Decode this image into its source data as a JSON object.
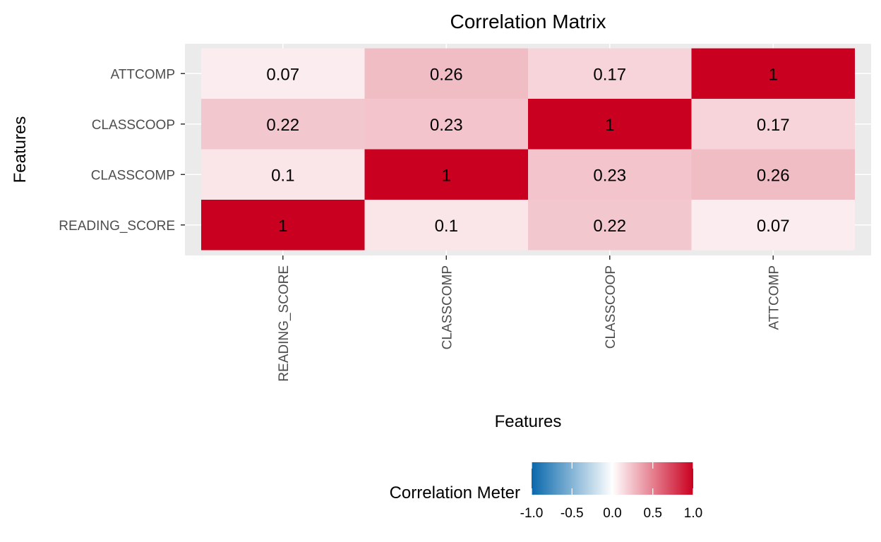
{
  "chart_data": {
    "type": "heatmap",
    "title": "Correlation Matrix",
    "xlabel": "Features",
    "ylabel": "Features",
    "x_categories": [
      "READING_SCORE",
      "CLASSCOMP",
      "CLASSCOOP",
      "ATTCOMP"
    ],
    "y_categories": [
      "READING_SCORE",
      "CLASSCOMP",
      "CLASSCOOP",
      "ATTCOMP"
    ],
    "values": [
      [
        1,
        0.1,
        0.22,
        0.07
      ],
      [
        0.1,
        1,
        0.23,
        0.26
      ],
      [
        0.22,
        0.23,
        1,
        0.17
      ],
      [
        0.07,
        0.26,
        0.17,
        1
      ]
    ],
    "value_labels": [
      [
        "1",
        "0.1",
        "0.22",
        "0.07"
      ],
      [
        "0.1",
        "1",
        "0.23",
        "0.26"
      ],
      [
        "0.22",
        "0.23",
        "1",
        "0.17"
      ],
      [
        "0.07",
        "0.26",
        "0.17",
        "1"
      ]
    ],
    "legend": {
      "title": "Correlation Meter",
      "placement": "bottom",
      "range": [
        -1,
        1
      ],
      "ticks": [
        -1,
        -0.5,
        0,
        0.5,
        1
      ],
      "tick_labels": [
        "-1.0",
        "-0.5",
        "0.0",
        "0.5",
        "1.0"
      ],
      "low_color": "#0868ac",
      "mid_color": "#ffffff",
      "high_color": "#ca0020"
    },
    "panel_background": "#ebebeb",
    "grid": true
  }
}
